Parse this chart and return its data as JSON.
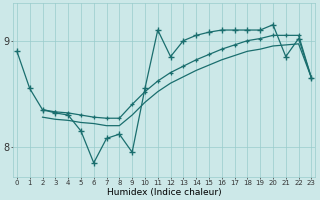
{
  "xlabel": "Humidex (Indice chaleur)",
  "background_color": "#cce8e8",
  "grid_color": "#99cccc",
  "line_color": "#1a6e6e",
  "x_ticks": [
    0,
    1,
    2,
    3,
    4,
    5,
    6,
    7,
    8,
    9,
    10,
    11,
    12,
    13,
    14,
    15,
    16,
    17,
    18,
    19,
    20,
    21,
    22,
    23
  ],
  "y_ticks": [
    8,
    9
  ],
  "ylim": [
    7.72,
    9.35
  ],
  "xlim": [
    -0.3,
    23.3
  ],
  "series1_x": [
    0,
    1,
    2,
    3,
    4,
    5,
    6,
    7,
    8,
    9,
    10,
    11,
    12,
    13,
    14,
    15,
    16,
    17,
    18,
    19,
    20,
    21,
    22,
    23
  ],
  "series1_y": [
    8.9,
    8.55,
    8.35,
    8.32,
    8.3,
    8.15,
    7.85,
    8.08,
    8.12,
    7.95,
    8.55,
    9.1,
    8.85,
    9.0,
    9.05,
    9.08,
    9.1,
    9.1,
    9.1,
    9.1,
    9.15,
    8.85,
    9.02,
    8.65
  ],
  "series2_x": [
    2,
    3,
    4,
    5,
    6,
    7,
    8,
    9,
    10,
    11,
    12,
    13,
    14,
    15,
    16,
    17,
    18,
    19,
    20,
    21,
    22,
    23
  ],
  "series2_y": [
    8.35,
    8.33,
    8.32,
    8.3,
    8.28,
    8.27,
    8.27,
    8.4,
    8.52,
    8.62,
    8.7,
    8.76,
    8.82,
    8.87,
    8.92,
    8.96,
    9.0,
    9.02,
    9.05,
    9.05,
    9.05,
    8.65
  ],
  "series3_x": [
    2,
    3,
    4,
    5,
    6,
    7,
    8,
    9,
    10,
    11,
    12,
    13,
    14,
    15,
    16,
    17,
    18,
    19,
    20,
    21,
    22,
    23
  ],
  "series3_y": [
    8.28,
    8.26,
    8.25,
    8.23,
    8.22,
    8.2,
    8.2,
    8.3,
    8.42,
    8.52,
    8.6,
    8.66,
    8.72,
    8.77,
    8.82,
    8.86,
    8.9,
    8.92,
    8.95,
    8.96,
    8.97,
    8.65
  ]
}
